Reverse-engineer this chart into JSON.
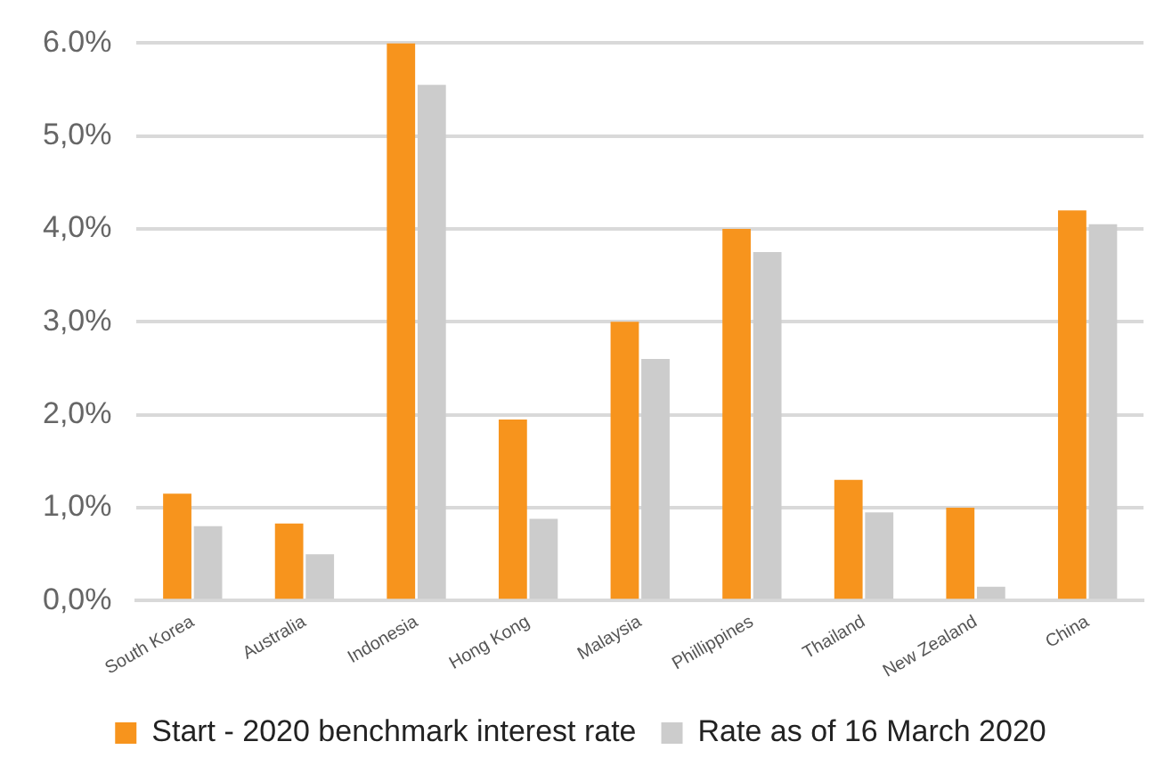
{
  "chart_data": {
    "type": "bar",
    "categories": [
      "South Korea",
      "Australia",
      "Indonesia",
      "Hong Kong",
      "Malaysia",
      "Phillippines",
      "Thailand",
      "New Zealand",
      "China"
    ],
    "series": [
      {
        "name": "Start - 2020 benchmark interest rate",
        "color": "#f7941d",
        "values": [
          1.15,
          0.83,
          6.0,
          1.95,
          3.0,
          4.0,
          1.3,
          1.0,
          4.2
        ]
      },
      {
        "name": "Rate as of 16 March 2020",
        "color": "#cccccc",
        "values": [
          0.8,
          0.5,
          5.55,
          0.88,
          2.6,
          3.75,
          0.95,
          0.15,
          4.05
        ]
      }
    ],
    "ylim": [
      0,
      6
    ],
    "yticks": [
      {
        "value": 0,
        "label": "0,0%"
      },
      {
        "value": 1,
        "label": "1,0%"
      },
      {
        "value": 2,
        "label": "2,0%"
      },
      {
        "value": 3,
        "label": "3,0%"
      },
      {
        "value": 4,
        "label": "4,0%"
      },
      {
        "value": 5,
        "label": "5,0%"
      },
      {
        "value": 6,
        "label": "6.0%"
      }
    ],
    "grid": "y",
    "legend": "bottom"
  }
}
